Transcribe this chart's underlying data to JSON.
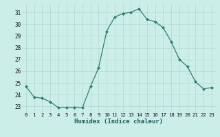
{
  "x": [
    0,
    1,
    2,
    3,
    4,
    5,
    6,
    7,
    8,
    9,
    10,
    11,
    12,
    13,
    14,
    15,
    16,
    17,
    18,
    19,
    20,
    21,
    22,
    23
  ],
  "y": [
    24.7,
    23.8,
    23.7,
    23.4,
    22.9,
    22.9,
    22.9,
    22.9,
    24.7,
    26.3,
    29.4,
    30.6,
    30.9,
    31.0,
    31.3,
    30.4,
    30.2,
    29.7,
    28.5,
    27.0,
    26.4,
    25.1,
    24.5,
    24.6
  ],
  "line_color": "#2e7d6e",
  "marker": "D",
  "marker_size": 2.0,
  "bg_color": "#cceee8",
  "grid_color": "#b0d8d0",
  "xlabel": "Humidex (Indice chaleur)",
  "ylim": [
    22.5,
    31.7
  ],
  "yticks": [
    23,
    24,
    25,
    26,
    27,
    28,
    29,
    30,
    31
  ],
  "xticks": [
    0,
    1,
    2,
    3,
    4,
    5,
    6,
    7,
    8,
    9,
    10,
    11,
    12,
    13,
    14,
    15,
    16,
    17,
    18,
    19,
    20,
    21,
    22,
    23
  ],
  "xlim": [
    -0.5,
    23.5
  ]
}
